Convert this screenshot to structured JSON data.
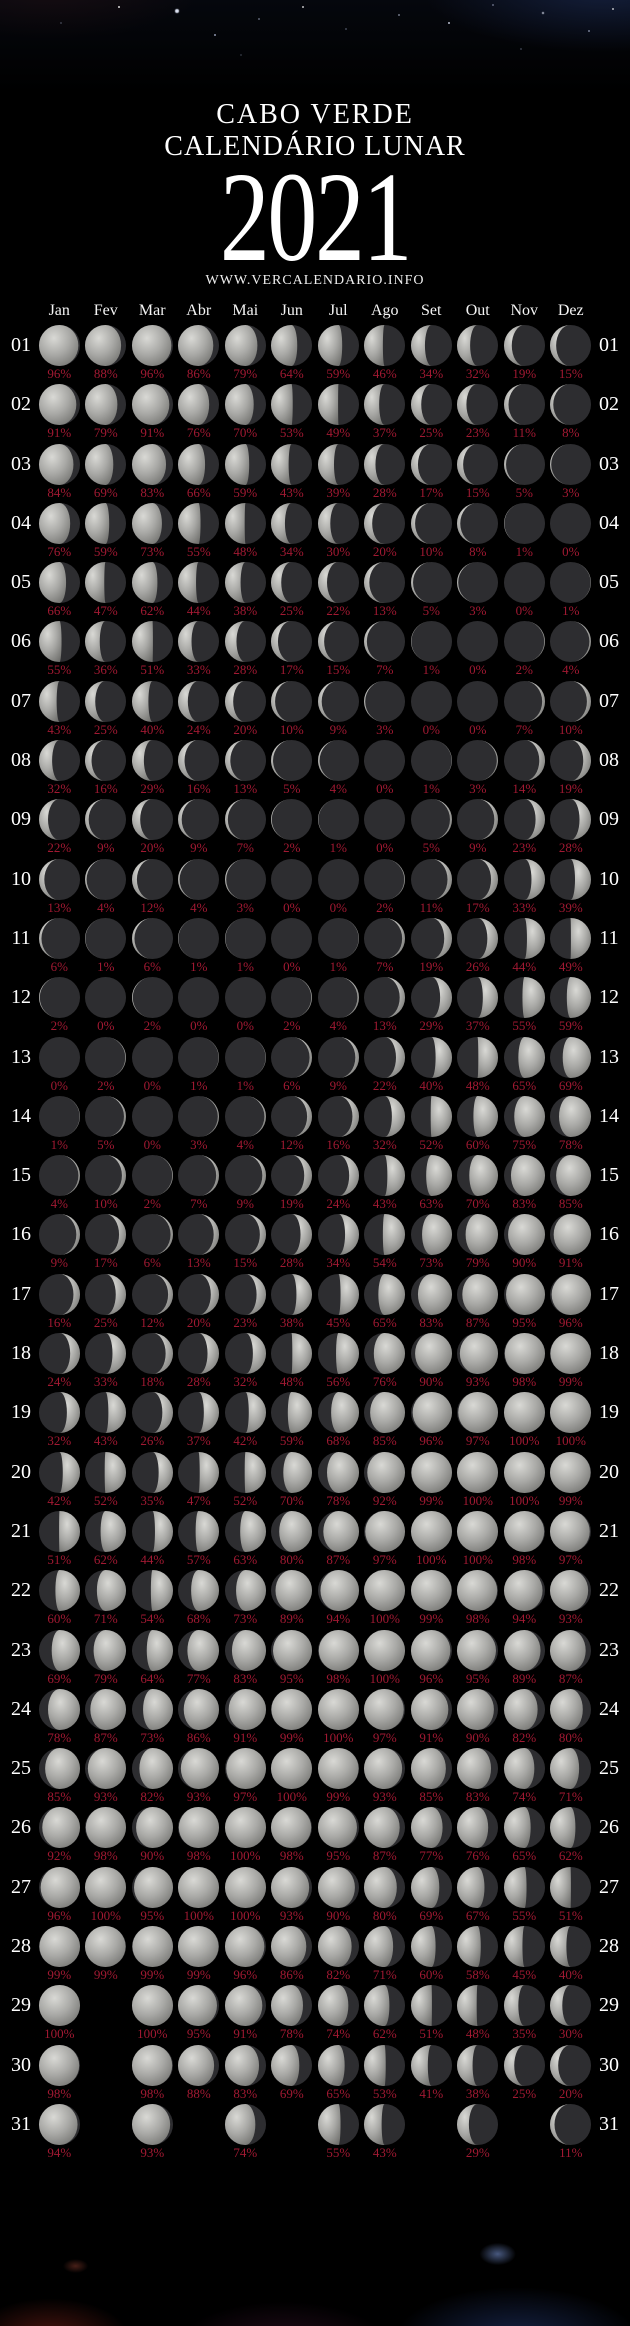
{
  "title": {
    "line1": "CABO VERDE",
    "line2": "CALENDÁRIO LUNAR",
    "year": "2021",
    "website": "WWW.VERCALENDARIO.INFO"
  },
  "months": [
    "Jan",
    "Fev",
    "Mar",
    "Abr",
    "Mai",
    "Jun",
    "Jul",
    "Ago",
    "Set",
    "Out",
    "Nov",
    "Dez"
  ],
  "colors": {
    "background": "#000000",
    "percent_text": "#a11932",
    "title_text": "#ffffff",
    "moon_lit": "#a9a9a6",
    "moon_dark": "#2d2d30"
  },
  "days": [
    {
      "day": "01",
      "values": [
        "96%",
        "88%",
        "96%",
        "86%",
        "79%",
        "64%",
        "59%",
        "46%",
        "34%",
        "32%",
        "19%",
        "15%"
      ]
    },
    {
      "day": "02",
      "values": [
        "91%",
        "79%",
        "91%",
        "76%",
        "70%",
        "53%",
        "49%",
        "37%",
        "25%",
        "23%",
        "11%",
        "8%"
      ]
    },
    {
      "day": "03",
      "values": [
        "84%",
        "69%",
        "83%",
        "66%",
        "59%",
        "43%",
        "39%",
        "28%",
        "17%",
        "15%",
        "5%",
        "3%"
      ]
    },
    {
      "day": "04",
      "values": [
        "76%",
        "59%",
        "73%",
        "55%",
        "48%",
        "34%",
        "30%",
        "20%",
        "10%",
        "8%",
        "1%",
        "0%"
      ]
    },
    {
      "day": "05",
      "values": [
        "66%",
        "47%",
        "62%",
        "44%",
        "38%",
        "25%",
        "22%",
        "13%",
        "5%",
        "3%",
        "0%",
        "1%"
      ]
    },
    {
      "day": "06",
      "values": [
        "55%",
        "36%",
        "51%",
        "33%",
        "28%",
        "17%",
        "15%",
        "7%",
        "1%",
        "0%",
        "2%",
        "4%"
      ]
    },
    {
      "day": "07",
      "values": [
        "43%",
        "25%",
        "40%",
        "24%",
        "20%",
        "10%",
        "9%",
        "3%",
        "0%",
        "0%",
        "7%",
        "10%"
      ]
    },
    {
      "day": "08",
      "values": [
        "32%",
        "16%",
        "29%",
        "16%",
        "13%",
        "5%",
        "4%",
        "0%",
        "1%",
        "3%",
        "14%",
        "19%"
      ]
    },
    {
      "day": "09",
      "values": [
        "22%",
        "9%",
        "20%",
        "9%",
        "7%",
        "2%",
        "1%",
        "0%",
        "5%",
        "9%",
        "23%",
        "28%"
      ]
    },
    {
      "day": "10",
      "values": [
        "13%",
        "4%",
        "12%",
        "4%",
        "3%",
        "0%",
        "0%",
        "2%",
        "11%",
        "17%",
        "33%",
        "39%"
      ]
    },
    {
      "day": "11",
      "values": [
        "6%",
        "1%",
        "6%",
        "1%",
        "1%",
        "0%",
        "1%",
        "7%",
        "19%",
        "26%",
        "44%",
        "49%"
      ]
    },
    {
      "day": "12",
      "values": [
        "2%",
        "0%",
        "2%",
        "0%",
        "0%",
        "2%",
        "4%",
        "13%",
        "29%",
        "37%",
        "55%",
        "59%"
      ]
    },
    {
      "day": "13",
      "values": [
        "0%",
        "2%",
        "0%",
        "1%",
        "1%",
        "6%",
        "9%",
        "22%",
        "40%",
        "48%",
        "65%",
        "69%"
      ]
    },
    {
      "day": "14",
      "values": [
        "1%",
        "5%",
        "0%",
        "3%",
        "4%",
        "12%",
        "16%",
        "32%",
        "52%",
        "60%",
        "75%",
        "78%"
      ]
    },
    {
      "day": "15",
      "values": [
        "4%",
        "10%",
        "2%",
        "7%",
        "9%",
        "19%",
        "24%",
        "43%",
        "63%",
        "70%",
        "83%",
        "85%"
      ]
    },
    {
      "day": "16",
      "values": [
        "9%",
        "17%",
        "6%",
        "13%",
        "15%",
        "28%",
        "34%",
        "54%",
        "73%",
        "79%",
        "90%",
        "91%"
      ]
    },
    {
      "day": "17",
      "values": [
        "16%",
        "25%",
        "12%",
        "20%",
        "23%",
        "38%",
        "45%",
        "65%",
        "83%",
        "87%",
        "95%",
        "96%"
      ]
    },
    {
      "day": "18",
      "values": [
        "24%",
        "33%",
        "18%",
        "28%",
        "32%",
        "48%",
        "56%",
        "76%",
        "90%",
        "93%",
        "98%",
        "99%"
      ]
    },
    {
      "day": "19",
      "values": [
        "32%",
        "43%",
        "26%",
        "37%",
        "42%",
        "59%",
        "68%",
        "85%",
        "96%",
        "97%",
        "100%",
        "100%"
      ]
    },
    {
      "day": "20",
      "values": [
        "42%",
        "52%",
        "35%",
        "47%",
        "52%",
        "70%",
        "78%",
        "92%",
        "99%",
        "100%",
        "100%",
        "99%"
      ]
    },
    {
      "day": "21",
      "values": [
        "51%",
        "62%",
        "44%",
        "57%",
        "63%",
        "80%",
        "87%",
        "97%",
        "100%",
        "100%",
        "98%",
        "97%"
      ]
    },
    {
      "day": "22",
      "values": [
        "60%",
        "71%",
        "54%",
        "68%",
        "73%",
        "89%",
        "94%",
        "100%",
        "99%",
        "98%",
        "94%",
        "93%"
      ]
    },
    {
      "day": "23",
      "values": [
        "69%",
        "79%",
        "64%",
        "77%",
        "83%",
        "95%",
        "98%",
        "100%",
        "96%",
        "95%",
        "89%",
        "87%"
      ]
    },
    {
      "day": "24",
      "values": [
        "78%",
        "87%",
        "73%",
        "86%",
        "91%",
        "99%",
        "100%",
        "97%",
        "91%",
        "90%",
        "82%",
        "80%"
      ]
    },
    {
      "day": "25",
      "values": [
        "85%",
        "93%",
        "82%",
        "93%",
        "97%",
        "100%",
        "99%",
        "93%",
        "85%",
        "83%",
        "74%",
        "71%"
      ]
    },
    {
      "day": "26",
      "values": [
        "92%",
        "98%",
        "90%",
        "98%",
        "100%",
        "98%",
        "95%",
        "87%",
        "77%",
        "76%",
        "65%",
        "62%"
      ]
    },
    {
      "day": "27",
      "values": [
        "96%",
        "100%",
        "95%",
        "100%",
        "100%",
        "93%",
        "90%",
        "80%",
        "69%",
        "67%",
        "55%",
        "51%"
      ]
    },
    {
      "day": "28",
      "values": [
        "99%",
        "99%",
        "99%",
        "99%",
        "96%",
        "86%",
        "82%",
        "71%",
        "60%",
        "58%",
        "45%",
        "40%"
      ]
    },
    {
      "day": "29",
      "values": [
        "100%",
        null,
        "100%",
        "95%",
        "91%",
        "78%",
        "74%",
        "62%",
        "51%",
        "48%",
        "35%",
        "30%"
      ]
    },
    {
      "day": "30",
      "values": [
        "98%",
        null,
        "98%",
        "88%",
        "83%",
        "69%",
        "65%",
        "53%",
        "41%",
        "38%",
        "25%",
        "20%"
      ]
    },
    {
      "day": "31",
      "values": [
        "94%",
        null,
        "93%",
        null,
        "74%",
        null,
        "55%",
        "43%",
        null,
        "29%",
        null,
        "11%"
      ]
    }
  ]
}
